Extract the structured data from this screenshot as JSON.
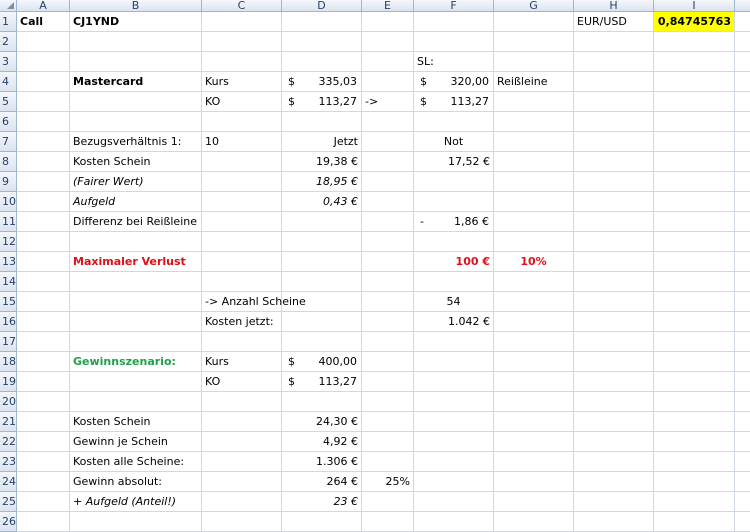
{
  "columns": [
    "A",
    "B",
    "C",
    "D",
    "E",
    "F",
    "G",
    "H",
    "I",
    ""
  ],
  "rows": 26,
  "colors": {
    "loss": "#e0101a",
    "scenario": "#21a04a",
    "highlight": "#ffff00"
  },
  "cells": [
    {
      "ref": "A1",
      "text": "Call",
      "style": "b"
    },
    {
      "ref": "B1",
      "text": "CJ1YND",
      "style": "b"
    },
    {
      "ref": "H1",
      "text": "EUR/USD"
    },
    {
      "ref": "I1",
      "text": "0,84745763",
      "style": "b r yellow"
    },
    {
      "ref": "F3",
      "text": "SL:"
    },
    {
      "ref": "B4",
      "text": "Mastercard",
      "style": "b"
    },
    {
      "ref": "C4",
      "text": "Kurs"
    },
    {
      "ref": "D4",
      "cur": "$",
      "text": "335,03"
    },
    {
      "ref": "F4",
      "cur": "$",
      "text": "320,00"
    },
    {
      "ref": "G4",
      "text": "Reißleine"
    },
    {
      "ref": "C5",
      "text": "KO"
    },
    {
      "ref": "D5",
      "cur": "$",
      "text": "113,27"
    },
    {
      "ref": "E5",
      "text": "->"
    },
    {
      "ref": "F5",
      "cur": "$",
      "text": "113,27"
    },
    {
      "ref": "B7",
      "text": "Bezugsverhältnis 1:"
    },
    {
      "ref": "C7",
      "text": "10"
    },
    {
      "ref": "D7",
      "text": "Jetzt",
      "style": "r"
    },
    {
      "ref": "F7",
      "text": "Not",
      "style": "c"
    },
    {
      "ref": "B8",
      "text": "Kosten Schein"
    },
    {
      "ref": "D8",
      "text": "19,38 €",
      "style": "r"
    },
    {
      "ref": "F8",
      "text": "17,52 €",
      "style": "r"
    },
    {
      "ref": "B9",
      "text": "(Fairer Wert)",
      "style": "i"
    },
    {
      "ref": "D9",
      "text": "18,95 €",
      "style": "r i"
    },
    {
      "ref": "B10",
      "text": "Aufgeld",
      "style": "i"
    },
    {
      "ref": "D10",
      "text": "0,43 €",
      "style": "r i"
    },
    {
      "ref": "B11",
      "text": "Differenz bei Reißleine"
    },
    {
      "ref": "F11",
      "cur": "-",
      "text": "1,86 €"
    },
    {
      "ref": "B13",
      "text": "Maximaler Verlust",
      "style": "b red"
    },
    {
      "ref": "F13",
      "text": "100 €",
      "style": "b red r"
    },
    {
      "ref": "G13",
      "text": "10%",
      "style": "b red c"
    },
    {
      "ref": "C15",
      "text": "-> Anzahl Scheine"
    },
    {
      "ref": "F15",
      "text": "54",
      "style": "c"
    },
    {
      "ref": "C16",
      "text": "Kosten jetzt:"
    },
    {
      "ref": "F16",
      "text": "1.042 €",
      "style": "r"
    },
    {
      "ref": "B18",
      "text": "Gewinnszenario:",
      "style": "b green"
    },
    {
      "ref": "C18",
      "text": "Kurs"
    },
    {
      "ref": "D18",
      "cur": "$",
      "text": "400,00"
    },
    {
      "ref": "C19",
      "text": "KO"
    },
    {
      "ref": "D19",
      "cur": "$",
      "text": "113,27"
    },
    {
      "ref": "B21",
      "text": "Kosten Schein"
    },
    {
      "ref": "D21",
      "text": "24,30 €",
      "style": "r"
    },
    {
      "ref": "B22",
      "text": "Gewinn je Schein"
    },
    {
      "ref": "D22",
      "text": "4,92 €",
      "style": "r"
    },
    {
      "ref": "B23",
      "text": "Kosten alle Scheine:"
    },
    {
      "ref": "D23",
      "text": "1.306 €",
      "style": "r"
    },
    {
      "ref": "B24",
      "text": "Gewinn absolut:"
    },
    {
      "ref": "D24",
      "text": "264 €",
      "style": "r"
    },
    {
      "ref": "E24",
      "text": "25%",
      "style": "r"
    },
    {
      "ref": "B25",
      "text": "+ Aufgeld (Anteil!)",
      "style": "i"
    },
    {
      "ref": "D25",
      "text": "23 €",
      "style": "r i"
    }
  ]
}
